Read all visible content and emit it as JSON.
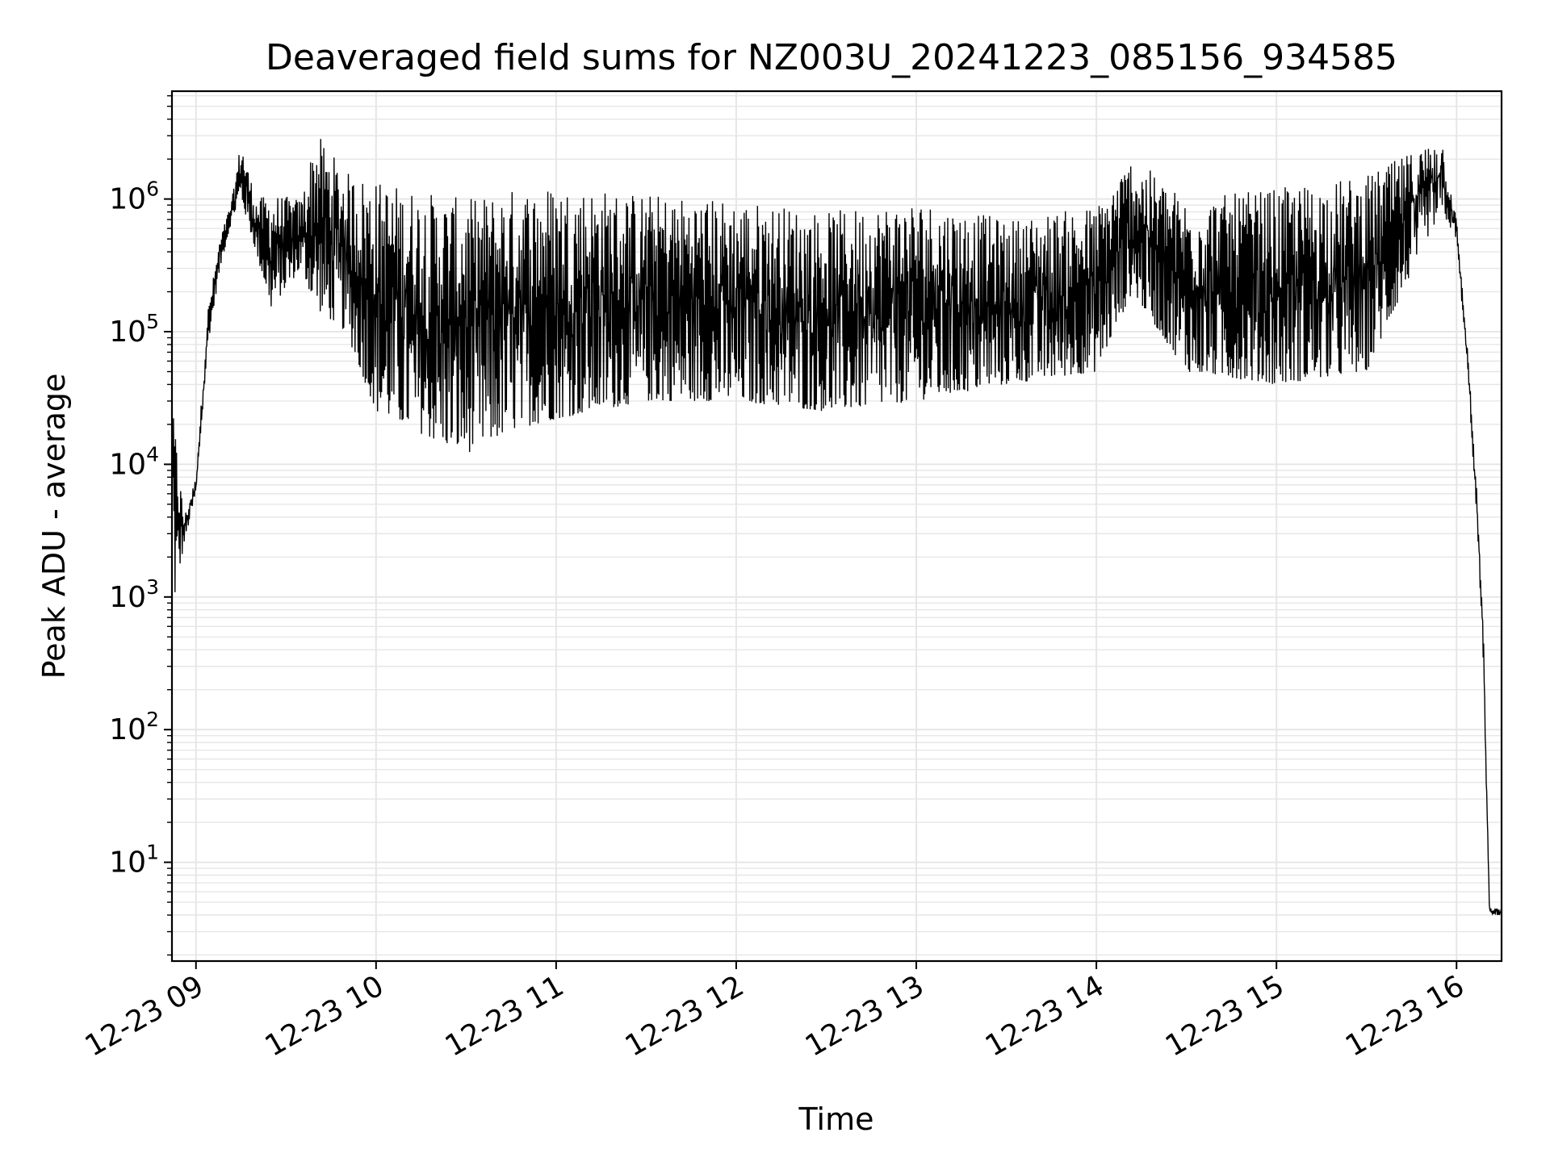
{
  "chart_data": {
    "type": "line",
    "title": "Deaveraged field sums for NZ003U_20241223_085156_934585",
    "xlabel": "Time",
    "ylabel": "Peak ADU - average",
    "yscale": "log",
    "grid": true,
    "grid_minor": true,
    "line_color": "#000000",
    "grid_color": "#e6e6e6",
    "xlim": [
      "2024-12-23 08:52",
      "2024-12-23 16:15"
    ],
    "ylim": [
      1.8,
      6500000
    ],
    "x_ticks": [
      {
        "value": "2024-12-23 09:00",
        "label": "12-23 09"
      },
      {
        "value": "2024-12-23 10:00",
        "label": "12-23 10"
      },
      {
        "value": "2024-12-23 11:00",
        "label": "12-23 11"
      },
      {
        "value": "2024-12-23 12:00",
        "label": "12-23 12"
      },
      {
        "value": "2024-12-23 13:00",
        "label": "12-23 13"
      },
      {
        "value": "2024-12-23 14:00",
        "label": "12-23 14"
      },
      {
        "value": "2024-12-23 15:00",
        "label": "12-23 15"
      },
      {
        "value": "2024-12-23 16:00",
        "label": "12-23 16"
      }
    ],
    "y_ticks": [
      {
        "value": 10,
        "base": "10",
        "exp": "1"
      },
      {
        "value": 100,
        "base": "10",
        "exp": "2"
      },
      {
        "value": 1000,
        "base": "10",
        "exp": "3"
      },
      {
        "value": 10000,
        "base": "10",
        "exp": "4"
      },
      {
        "value": 100000,
        "base": "10",
        "exp": "5"
      },
      {
        "value": 1000000,
        "base": "10",
        "exp": "6"
      }
    ],
    "series": [
      {
        "description_of_shape": "dense fluctuating signal; envelope given below",
        "envelope": [
          {
            "x": "2024-12-23 08:52",
            "low": 13000,
            "high": 25000
          },
          {
            "x": "2024-12-23 08:53",
            "low": 1000,
            "high": 20000
          },
          {
            "x": "2024-12-23 08:56",
            "low": 2500,
            "high": 4000
          },
          {
            "x": "2024-12-23 09:00",
            "low": 6000,
            "high": 8000
          },
          {
            "x": "2024-12-23 09:04",
            "low": 80000,
            "high": 150000
          },
          {
            "x": "2024-12-23 09:08",
            "low": 300000,
            "high": 500000
          },
          {
            "x": "2024-12-23 09:12",
            "low": 700000,
            "high": 1000000
          },
          {
            "x": "2024-12-23 09:15",
            "low": 1000000,
            "high": 2800000
          },
          {
            "x": "2024-12-23 09:20",
            "low": 400000,
            "high": 1000000
          },
          {
            "x": "2024-12-23 09:25",
            "low": 150000,
            "high": 1100000
          },
          {
            "x": "2024-12-23 09:35",
            "low": 300000,
            "high": 1000000
          },
          {
            "x": "2024-12-23 09:40",
            "low": 150000,
            "high": 3200000
          },
          {
            "x": "2024-12-23 09:50",
            "low": 100000,
            "high": 1600000
          },
          {
            "x": "2024-12-23 10:00",
            "low": 25000,
            "high": 1400000
          },
          {
            "x": "2024-12-23 10:20",
            "low": 15000,
            "high": 1100000
          },
          {
            "x": "2024-12-23 10:30",
            "low": 12000,
            "high": 1000000
          },
          {
            "x": "2024-12-23 10:45",
            "low": 18000,
            "high": 1200000
          },
          {
            "x": "2024-12-23 11:00",
            "low": 22000,
            "high": 1300000
          },
          {
            "x": "2024-12-23 11:30",
            "low": 30000,
            "high": 1100000
          },
          {
            "x": "2024-12-23 12:00",
            "low": 30000,
            "high": 1000000
          },
          {
            "x": "2024-12-23 12:30",
            "low": 25000,
            "high": 800000
          },
          {
            "x": "2024-12-23 13:00",
            "low": 30000,
            "high": 1000000
          },
          {
            "x": "2024-12-23 13:30",
            "low": 40000,
            "high": 700000
          },
          {
            "x": "2024-12-23 14:00",
            "low": 50000,
            "high": 900000
          },
          {
            "x": "2024-12-23 14:12",
            "low": 200000,
            "high": 2100000
          },
          {
            "x": "2024-12-23 14:30",
            "low": 50000,
            "high": 1000000
          },
          {
            "x": "2024-12-23 15:00",
            "low": 40000,
            "high": 1200000
          },
          {
            "x": "2024-12-23 15:30",
            "low": 50000,
            "high": 1500000
          },
          {
            "x": "2024-12-23 15:50",
            "low": 500000,
            "high": 2600000
          },
          {
            "x": "2024-12-23 15:55",
            "low": 800000,
            "high": 3000000
          },
          {
            "x": "2024-12-23 16:00",
            "low": 500000,
            "high": 700000
          },
          {
            "x": "2024-12-23 16:04",
            "low": 40000,
            "high": 60000
          },
          {
            "x": "2024-12-23 16:07",
            "low": 3000,
            "high": 5000
          },
          {
            "x": "2024-12-23 16:09",
            "low": 300,
            "high": 500
          },
          {
            "x": "2024-12-23 16:10",
            "low": 30,
            "high": 40
          },
          {
            "x": "2024-12-23 16:11",
            "low": 4,
            "high": 4.5
          },
          {
            "x": "2024-12-23 16:15",
            "low": 4,
            "high": 4.5
          }
        ]
      }
    ]
  }
}
